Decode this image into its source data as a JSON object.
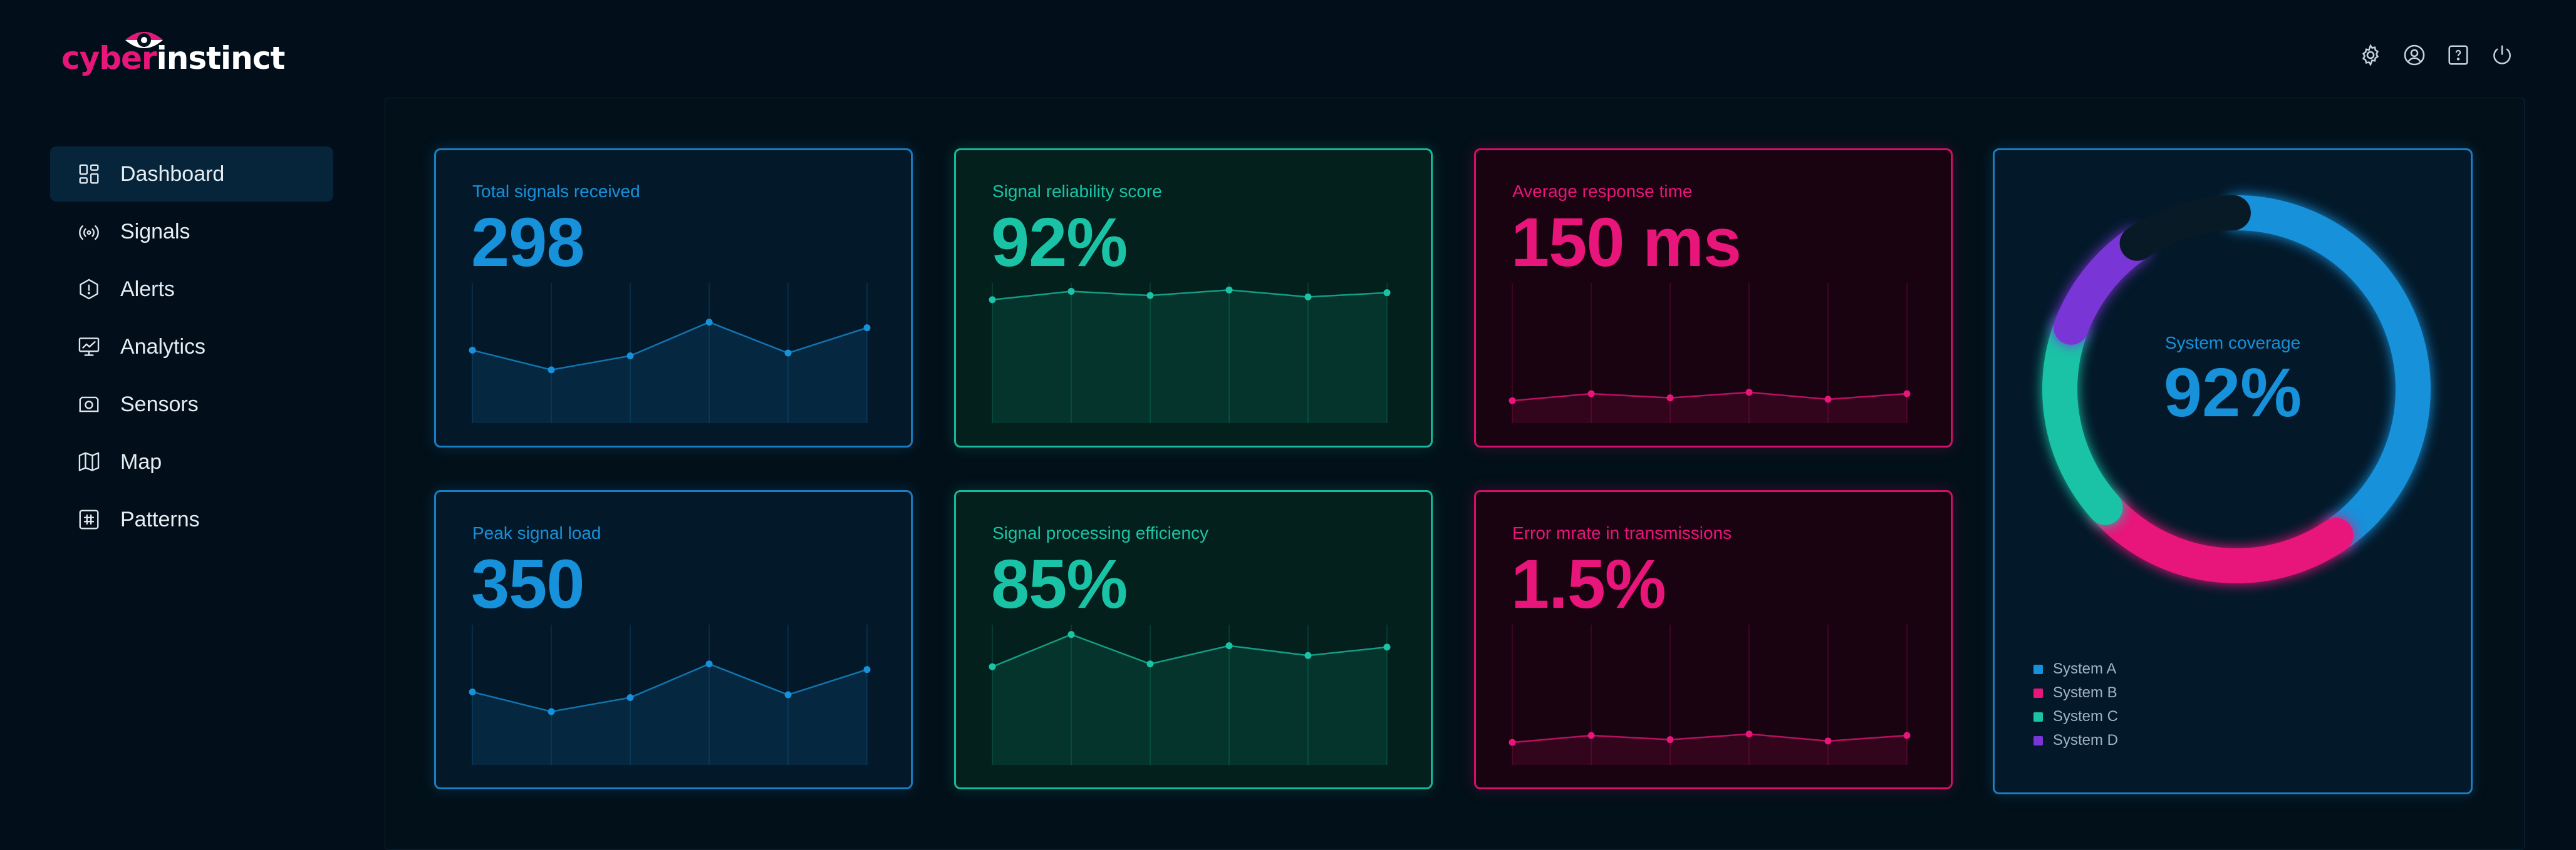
{
  "brand": {
    "part1": "cyber",
    "part2": "instinct"
  },
  "header": {
    "icons": [
      "gear-icon",
      "user-icon",
      "help-icon",
      "power-icon"
    ]
  },
  "sidebar": {
    "items": [
      {
        "label": "Dashboard",
        "icon": "dashboard-icon",
        "active": true
      },
      {
        "label": "Signals",
        "icon": "signal-icon"
      },
      {
        "label": "Alerts",
        "icon": "alert-icon"
      },
      {
        "label": "Analytics",
        "icon": "analytics-icon"
      },
      {
        "label": "Sensors",
        "icon": "sensor-icon"
      },
      {
        "label": "Map",
        "icon": "map-icon"
      },
      {
        "label": "Patterns",
        "icon": "pattern-icon"
      }
    ]
  },
  "colors": {
    "blue": "#1791da",
    "green": "#1ac3a6",
    "pink": "#e8157a",
    "purple": "#7a35d6"
  },
  "cards": [
    {
      "label": "Total signals received",
      "value": "298",
      "theme": "blue",
      "trend": [
        0.52,
        0.38,
        0.48,
        0.72,
        0.5,
        0.68
      ]
    },
    {
      "label": "Signal reliability score",
      "value": "92%",
      "theme": "green",
      "trend": [
        0.88,
        0.94,
        0.91,
        0.95,
        0.9,
        0.93
      ]
    },
    {
      "label": "Average response time",
      "value": "150 ms",
      "theme": "pink",
      "trend": [
        0.16,
        0.21,
        0.18,
        0.22,
        0.17,
        0.21
      ]
    },
    {
      "label": "Peak signal load",
      "value": "350",
      "theme": "blue",
      "trend": [
        0.52,
        0.38,
        0.48,
        0.72,
        0.5,
        0.68
      ]
    },
    {
      "label": "Signal processing efficiency",
      "value": "85%",
      "theme": "green",
      "trend": [
        0.7,
        0.93,
        0.72,
        0.85,
        0.78,
        0.84
      ]
    },
    {
      "label": "Error mrate in transmissions",
      "value": "1.5%",
      "theme": "pink",
      "trend": [
        0.16,
        0.21,
        0.18,
        0.22,
        0.17,
        0.21
      ]
    }
  ],
  "coverage": {
    "label": "System coverage",
    "value": "92%",
    "legend": [
      {
        "name": "System A",
        "color": "#1791da"
      },
      {
        "name": "System B",
        "color": "#e8157a"
      },
      {
        "name": "System C",
        "color": "#1ac3a6"
      },
      {
        "name": "System D",
        "color": "#7a35d6"
      }
    ],
    "segments": [
      {
        "system": "System A",
        "share": 0.37
      },
      {
        "system": "System B",
        "share": 0.21
      },
      {
        "system": "System C",
        "share": 0.16
      },
      {
        "system": "System D",
        "share": 0.09
      },
      {
        "system": "",
        "share": 0.09
      }
    ]
  }
}
